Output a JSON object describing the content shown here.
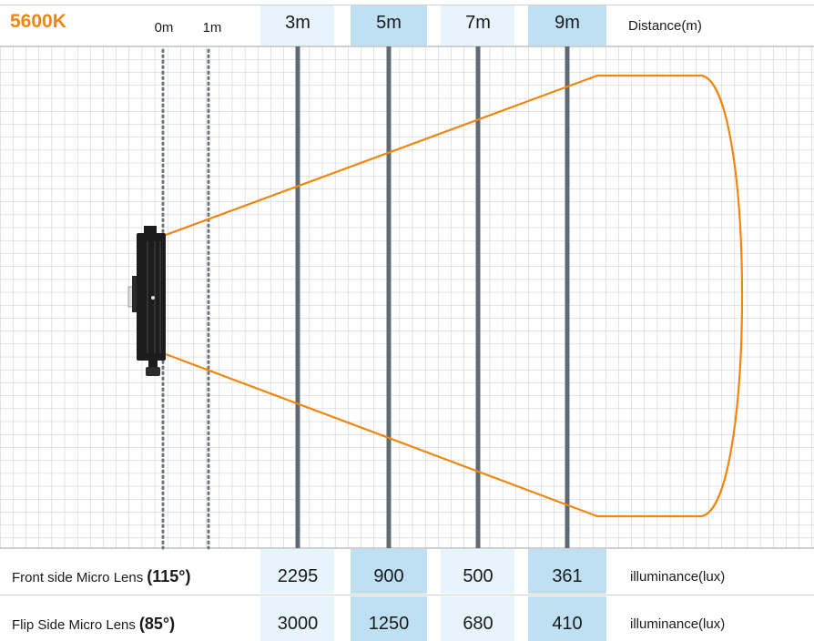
{
  "header": {
    "color_temp": "5600K",
    "distance_label": "Distance(m)",
    "distances": [
      {
        "label": "0m",
        "style": "small"
      },
      {
        "label": "1m",
        "style": "small"
      },
      {
        "label": "3m",
        "style": "large"
      },
      {
        "label": "5m",
        "style": "large"
      },
      {
        "label": "7m",
        "style": "large"
      },
      {
        "label": "9m",
        "style": "large"
      }
    ]
  },
  "rows": [
    {
      "label": "Front side Micro Lens",
      "angle": "(115°)",
      "values": [
        "2295",
        "900",
        "500",
        "361"
      ],
      "unit": "illuminance(lux)"
    },
    {
      "label": "Flip Side Micro Lens",
      "angle": "(85°)",
      "values": [
        "3000",
        "1250",
        "680",
        "410"
      ],
      "unit": "illuminance(lux)"
    }
  ],
  "colors": {
    "accent": "#f0860f",
    "column_light": "#e8f4fc",
    "column_dark": "#bfe0f3",
    "grid": "#c8c8c8",
    "distance_line": "#5f6a72"
  },
  "icons": {
    "light_fixture": "led-panel-light-icon"
  }
}
